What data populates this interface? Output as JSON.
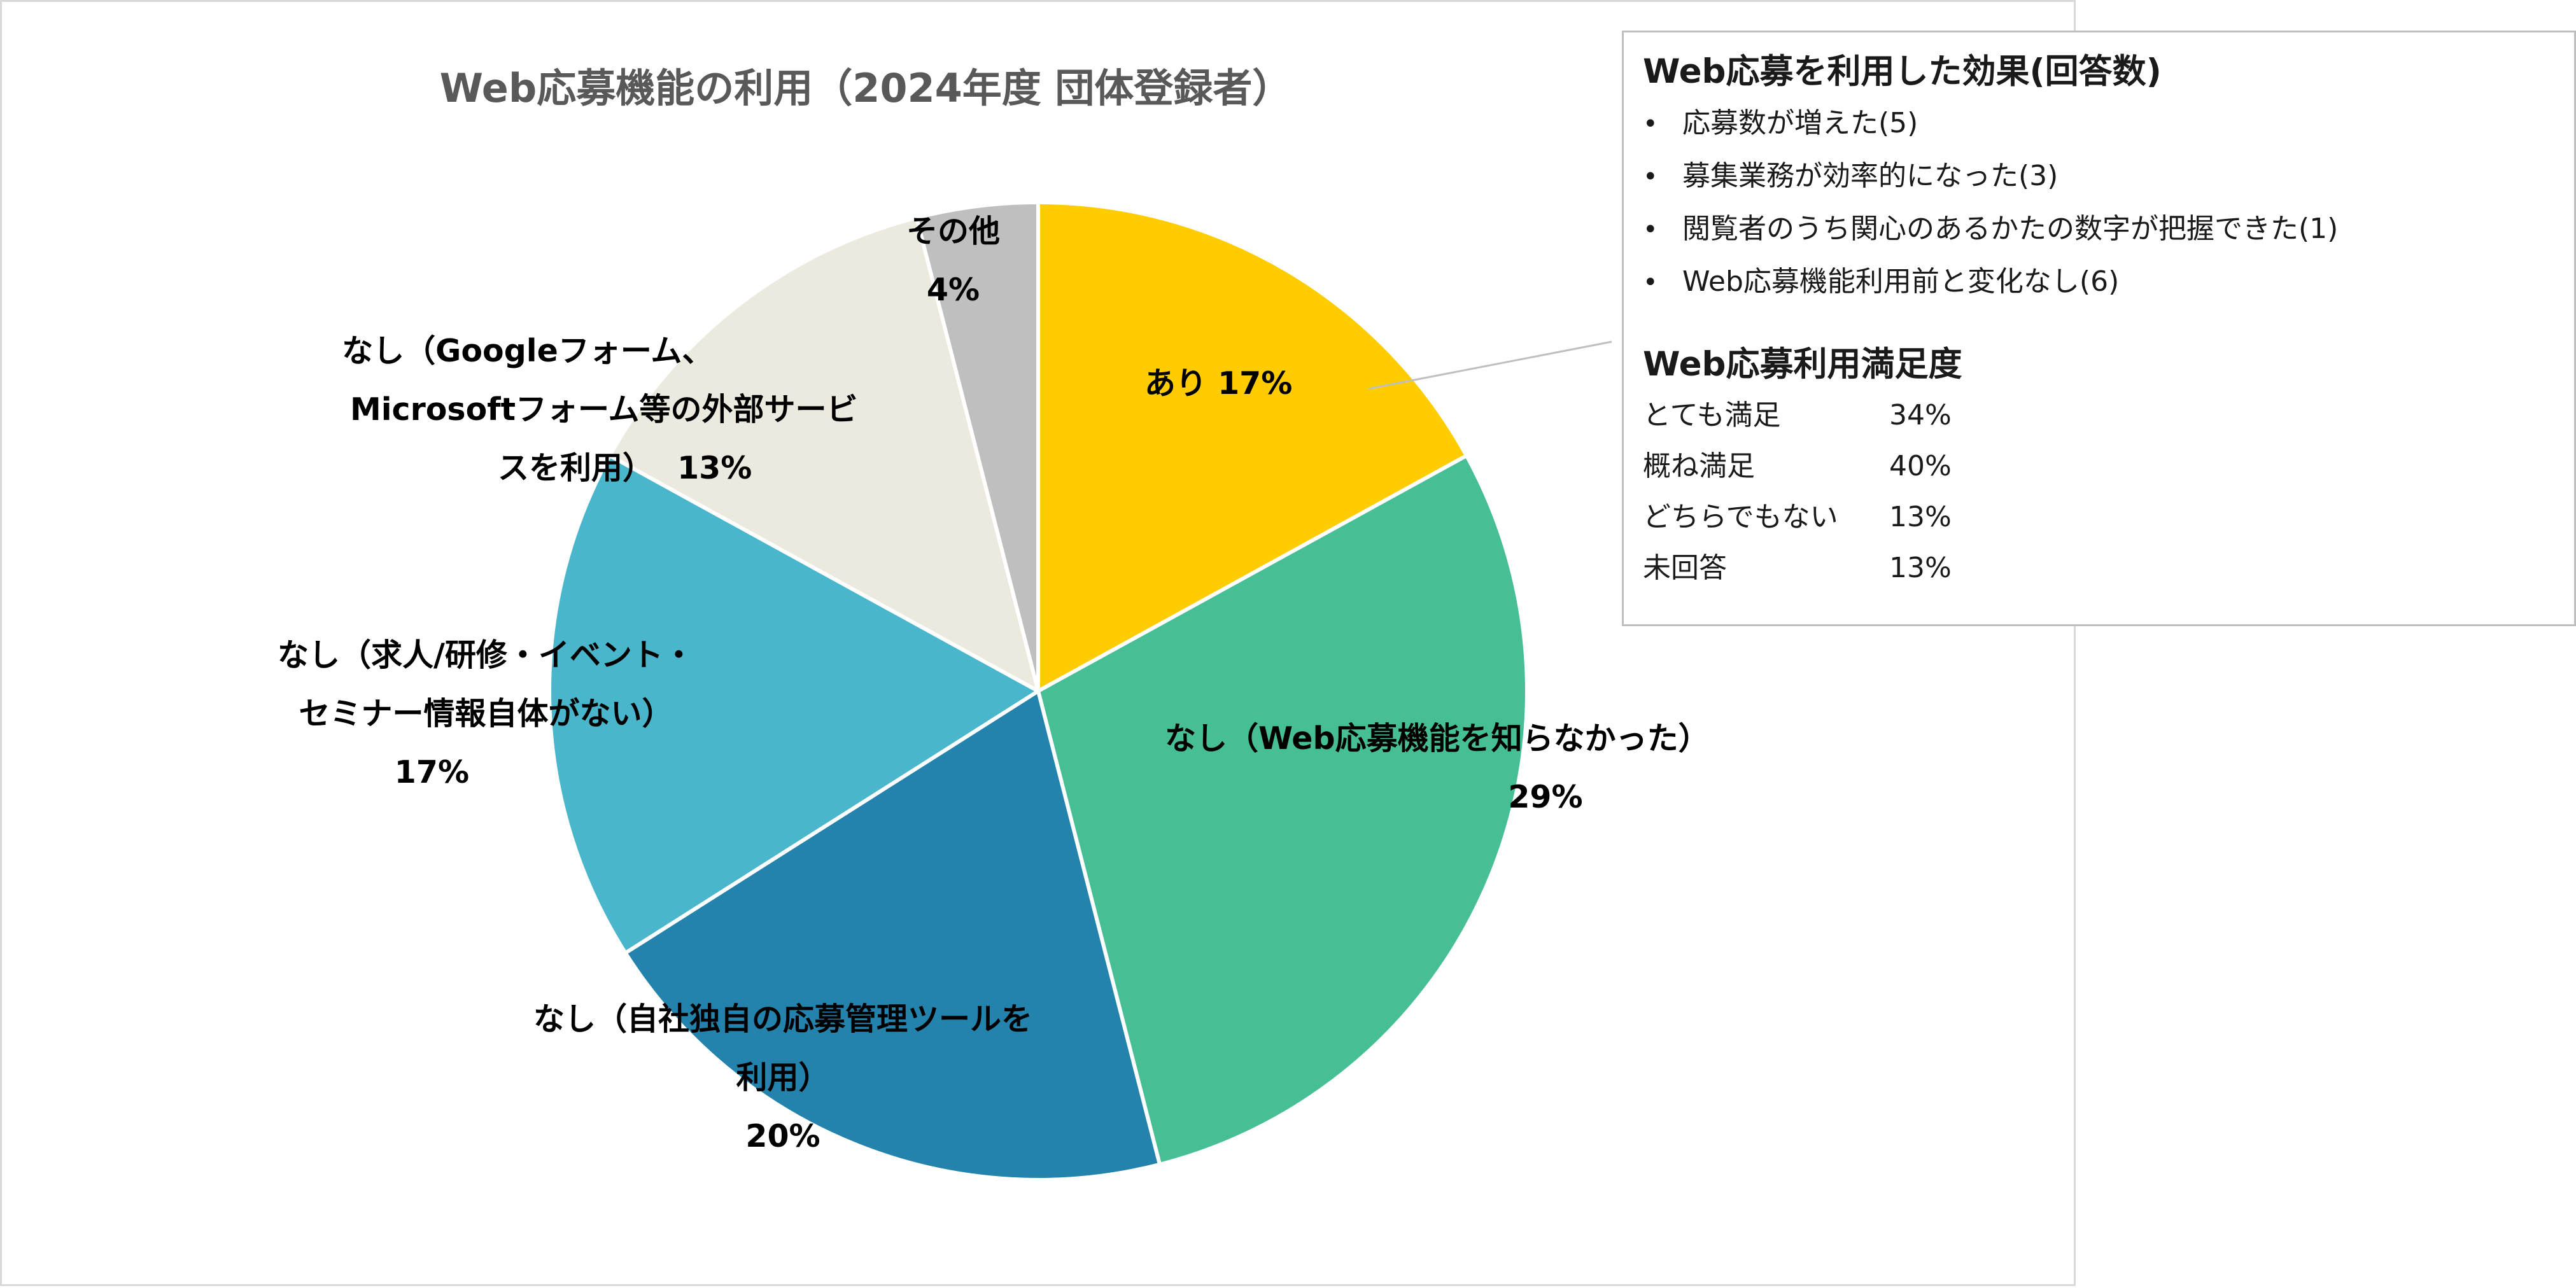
{
  "chart_data": {
    "type": "pie",
    "title": "Web応募機能の利用（2024年度 団体登録者）",
    "start_angle": "12 o'clock",
    "direction": "clockwise",
    "slices": [
      {
        "label": "あり",
        "value": 17,
        "value_label": "17%",
        "color": "#FFCC00"
      },
      {
        "label": "なし（Web応募機能を知らなかった）",
        "value": 29,
        "value_label": "29%",
        "color": "#47BF95"
      },
      {
        "label": "なし（自社独自の応募管理ツールを利用）",
        "value": 20,
        "value_label": "20%",
        "color": "#2483AD"
      },
      {
        "label": "なし（求人/研修・イベント・セミナー情報自体がない）",
        "value": 17,
        "value_label": "17%",
        "color": "#49B6CC"
      },
      {
        "label": "なし（Googleフォーム、Microsoftフォーム等の外部サービスを利用）",
        "value": 13,
        "value_label": "13%",
        "color": "#ECEADF"
      },
      {
        "label": "その他",
        "value": 4,
        "value_label": "4%",
        "color": "#BFBFBF"
      }
    ]
  },
  "labels": {
    "s0": [
      "あり",
      "17%"
    ],
    "s1": [
      "なし（Web応募機能を知らなかった）",
      "29%"
    ],
    "s2": [
      "なし（自社独自の応募管理ツールを",
      "利用）",
      "20%"
    ],
    "s3": [
      "なし（求人/研修・イベント・",
      "セミナー情報自体がない）",
      "17%"
    ],
    "s4": [
      "なし（Googleフォーム、",
      "Microsoftフォーム等の外部サービ",
      "スを利用）",
      "13%"
    ],
    "s5": [
      "その他",
      "4%"
    ]
  },
  "info_box": {
    "effects_heading": "Web応募を利用した効果(回答数)",
    "bullet": "•",
    "effects": [
      "応募数が増えた(5)",
      "募集業務が効率的になった(3)",
      "閲覧者のうち関心のあるかたの数字が把握できた(1)",
      "Web応募機能利用前と変化なし(6)"
    ],
    "satisfaction_heading": "Web応募利用満足度",
    "satisfaction": [
      {
        "label": "とても満足",
        "value": "34%"
      },
      {
        "label": "概ね満足",
        "value": "40%"
      },
      {
        "label": "どちらでもない",
        "value": "13%"
      },
      {
        "label": "未回答",
        "value": "13%"
      }
    ]
  }
}
